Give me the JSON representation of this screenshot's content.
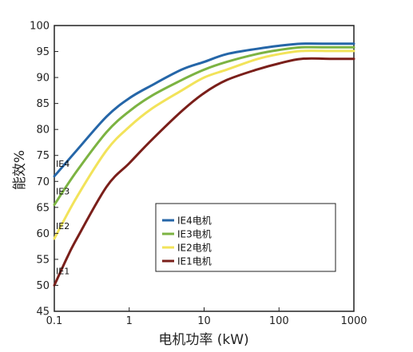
{
  "chart_data": {
    "type": "line",
    "title": "",
    "xlabel": "电机功率 (kW)",
    "ylabel": "能效%",
    "xscale": "log",
    "xlim": [
      0.1,
      1000
    ],
    "ylim": [
      45,
      100
    ],
    "x_ticks": [
      "0.1",
      "1",
      "10",
      "100",
      "1000"
    ],
    "y_ticks": [
      "45",
      "50",
      "55",
      "60",
      "65",
      "70",
      "75",
      "80",
      "85",
      "90",
      "95",
      "100"
    ],
    "grid": false,
    "legend_position": "lower-right",
    "series": [
      {
        "name": "IE4电机",
        "curve_label": "IE4",
        "color": "#2566a8",
        "x": [
          0.1,
          0.2,
          0.5,
          1,
          2,
          5,
          10,
          20,
          50,
          100,
          200,
          500,
          1000
        ],
        "y": [
          71,
          76,
          82.5,
          86,
          88.5,
          91.5,
          93,
          94.5,
          95.5,
          96.1,
          96.5,
          96.5,
          96.5
        ]
      },
      {
        "name": "IE3电机",
        "curve_label": "IE3",
        "color": "#7cb342",
        "x": [
          0.1,
          0.2,
          0.5,
          1,
          2,
          5,
          10,
          20,
          50,
          100,
          200,
          500,
          1000
        ],
        "y": [
          65.5,
          72,
          79.5,
          83.5,
          86.5,
          89.5,
          91.5,
          93,
          94.5,
          95.3,
          95.8,
          95.8,
          95.8
        ]
      },
      {
        "name": "IE2电机",
        "curve_label": "IE2",
        "color": "#f2e35a",
        "x": [
          0.1,
          0.2,
          0.5,
          1,
          2,
          5,
          10,
          20,
          50,
          100,
          200,
          500,
          1000
        ],
        "y": [
          59,
          67,
          76,
          80.5,
          84,
          87.5,
          90,
          91.5,
          93.5,
          94.5,
          95.1,
          95.1,
          95.1
        ]
      },
      {
        "name": "IE1电机",
        "curve_label": "IE1",
        "color": "#7a1f1a",
        "x": [
          0.1,
          0.15,
          0.2,
          0.5,
          1,
          2,
          5,
          10,
          20,
          50,
          100,
          200,
          500,
          1000
        ],
        "y": [
          50,
          55.5,
          59,
          69,
          73.5,
          78,
          83.5,
          87,
          89.5,
          91.5,
          92.7,
          93.6,
          93.6,
          93.6
        ]
      }
    ]
  }
}
